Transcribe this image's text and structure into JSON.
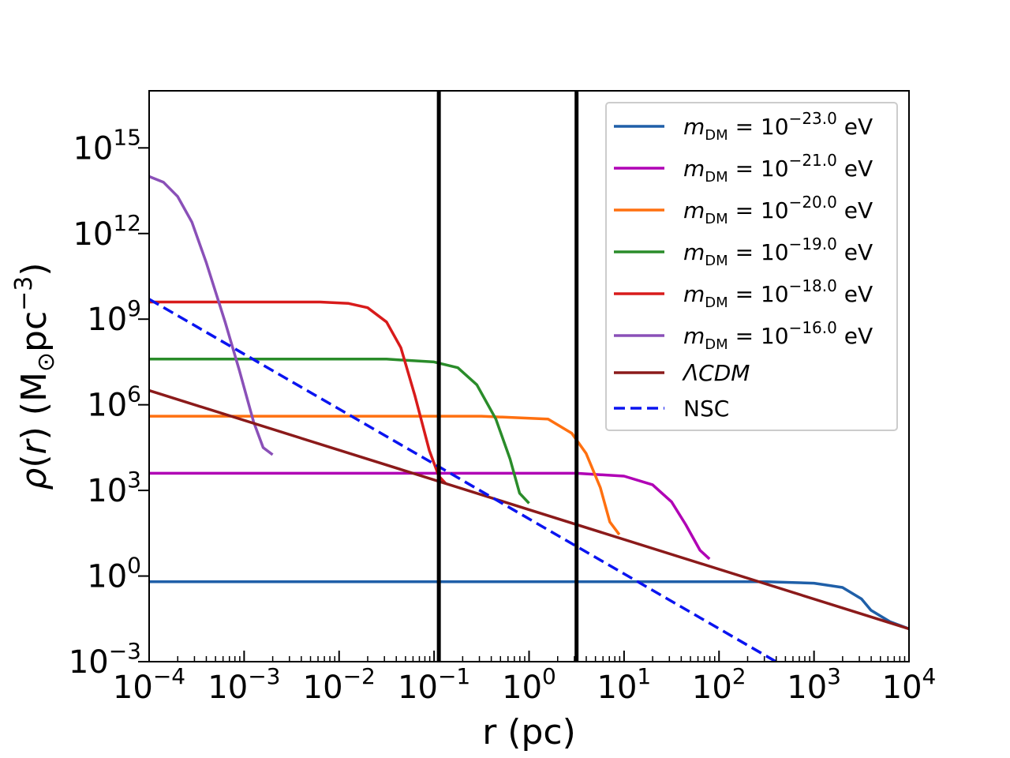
{
  "chart_data": {
    "type": "line",
    "title": "",
    "xlabel": "r (pc)",
    "ylabel": "ρ(r) (M⊙pc−3)",
    "ylabel_parts": {
      "rho": "ρ",
      "r": "r",
      "open": "(",
      "close": ")",
      "units_open": " (M",
      "sun": "⊙",
      "pc": "pc",
      "exp": "−3",
      "units_close": ")"
    },
    "xscale": "log",
    "yscale": "log",
    "xlim_log10": [
      -4,
      4
    ],
    "ylim_log10": [
      -3,
      17
    ],
    "x_ticks": [
      {
        "base": "10",
        "exp": "−4",
        "log": -4
      },
      {
        "base": "10",
        "exp": "−3",
        "log": -3
      },
      {
        "base": "10",
        "exp": "−2",
        "log": -2
      },
      {
        "base": "10",
        "exp": "−1",
        "log": -1
      },
      {
        "base": "10",
        "exp": "0",
        "log": 0
      },
      {
        "base": "10",
        "exp": "1",
        "log": 1
      },
      {
        "base": "10",
        "exp": "2",
        "log": 2
      },
      {
        "base": "10",
        "exp": "3",
        "log": 3
      },
      {
        "base": "10",
        "exp": "4",
        "log": 4
      }
    ],
    "y_ticks": [
      {
        "base": "10",
        "exp": "−3",
        "log": -3
      },
      {
        "base": "10",
        "exp": "0",
        "log": 0
      },
      {
        "base": "10",
        "exp": "3",
        "log": 3
      },
      {
        "base": "10",
        "exp": "6",
        "log": 6
      },
      {
        "base": "10",
        "exp": "9",
        "log": 9
      },
      {
        "base": "10",
        "exp": "12",
        "log": 12
      },
      {
        "base": "10",
        "exp": "15",
        "log": 15
      }
    ],
    "vlines_log10": [
      -0.95,
      0.5
    ],
    "vline_color": "#000000",
    "legend_location": "upper right",
    "series": [
      {
        "name": "m_DM = 10^-23.0 eV",
        "prefix": "m",
        "sub": "DM",
        "eq": " = 10",
        "exp": "−23.0",
        "unit": " eV",
        "color": "#1f5fa8",
        "dash": false,
        "points": [
          [
            -4,
            -0.2
          ],
          [
            2.5,
            -0.2
          ],
          [
            3.0,
            -0.25
          ],
          [
            3.3,
            -0.4
          ],
          [
            3.5,
            -0.8
          ],
          [
            3.6,
            -1.2
          ],
          [
            3.8,
            -1.6
          ],
          [
            4,
            -1.85
          ]
        ]
      },
      {
        "name": "m_DM = 10^-21.0 eV",
        "prefix": "m",
        "sub": "DM",
        "eq": " = 10",
        "exp": "−21.0",
        "unit": " eV",
        "color": "#b000b5",
        "dash": false,
        "points": [
          [
            -4,
            3.6
          ],
          [
            0.5,
            3.6
          ],
          [
            1.0,
            3.5
          ],
          [
            1.3,
            3.2
          ],
          [
            1.5,
            2.6
          ],
          [
            1.65,
            1.8
          ],
          [
            1.8,
            0.9
          ],
          [
            1.9,
            0.6
          ]
        ]
      },
      {
        "name": "m_DM = 10^-20.0 eV",
        "prefix": "m",
        "sub": "DM",
        "eq": " = 10",
        "exp": "−20.0",
        "unit": " eV",
        "color": "#ff7010",
        "dash": false,
        "points": [
          [
            -4,
            5.6
          ],
          [
            -0.5,
            5.6
          ],
          [
            0.2,
            5.5
          ],
          [
            0.45,
            5.0
          ],
          [
            0.6,
            4.3
          ],
          [
            0.75,
            3.1
          ],
          [
            0.85,
            1.9
          ],
          [
            0.95,
            1.45
          ]
        ]
      },
      {
        "name": "m_DM = 10^-19.0 eV",
        "prefix": "m",
        "sub": "DM",
        "eq": " = 10",
        "exp": "−19.0",
        "unit": " eV",
        "color": "#2a8c2a",
        "dash": false,
        "points": [
          [
            -4,
            7.6
          ],
          [
            -1.5,
            7.6
          ],
          [
            -1.0,
            7.5
          ],
          [
            -0.75,
            7.3
          ],
          [
            -0.55,
            6.7
          ],
          [
            -0.35,
            5.5
          ],
          [
            -0.2,
            4.1
          ],
          [
            -0.1,
            2.9
          ],
          [
            0.0,
            2.55
          ]
        ]
      },
      {
        "name": "m_DM = 10^-18.0 eV",
        "prefix": "m",
        "sub": "DM",
        "eq": " = 10",
        "exp": "−18.0",
        "unit": " eV",
        "color": "#d81b1b",
        "dash": false,
        "points": [
          [
            -4,
            9.6
          ],
          [
            -2.2,
            9.6
          ],
          [
            -1.9,
            9.55
          ],
          [
            -1.7,
            9.4
          ],
          [
            -1.5,
            8.9
          ],
          [
            -1.35,
            8.0
          ],
          [
            -1.2,
            6.3
          ],
          [
            -1.05,
            4.4
          ],
          [
            -0.95,
            3.5
          ],
          [
            -0.88,
            3.25
          ]
        ]
      },
      {
        "name": "m_DM = 10^-16.0 eV",
        "prefix": "m",
        "sub": "DM",
        "eq": " = 10",
        "exp": "−16.0",
        "unit": " eV",
        "color": "#8a50b8",
        "dash": false,
        "points": [
          [
            -4,
            14.0
          ],
          [
            -3.85,
            13.8
          ],
          [
            -3.7,
            13.3
          ],
          [
            -3.55,
            12.4
          ],
          [
            -3.4,
            11.0
          ],
          [
            -3.2,
            8.9
          ],
          [
            -3.05,
            7.2
          ],
          [
            -2.9,
            5.4
          ],
          [
            -2.8,
            4.5
          ],
          [
            -2.7,
            4.25
          ]
        ]
      },
      {
        "name": "ΛCDM",
        "label": "ΛCDM",
        "color": "#8b1a1a",
        "dash": false,
        "points": [
          [
            -4,
            6.5
          ],
          [
            4,
            -1.85
          ]
        ]
      },
      {
        "name": "NSC",
        "label": "NSC",
        "color": "#0a14f0",
        "dash": true,
        "points": [
          [
            -4,
            9.7
          ],
          [
            2.6,
            -3.0
          ]
        ]
      }
    ]
  }
}
